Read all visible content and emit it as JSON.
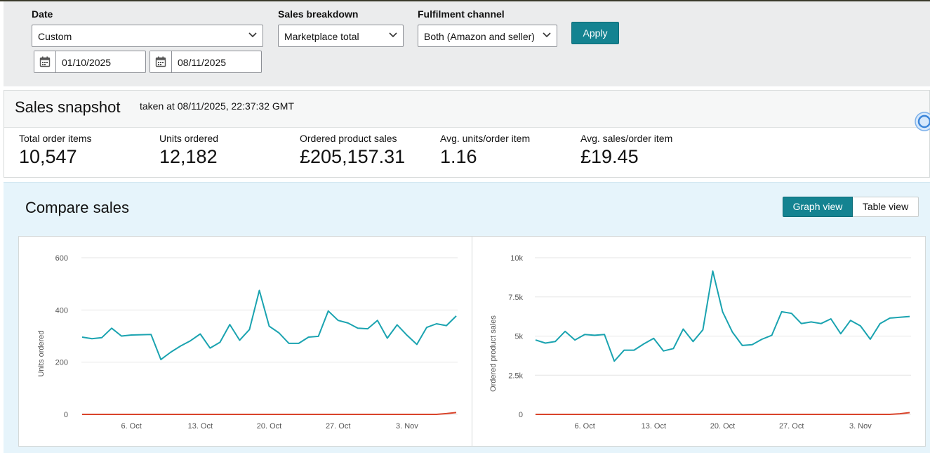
{
  "filters": {
    "date": {
      "label": "Date",
      "value": "Custom",
      "start": "01/10/2025",
      "end": "08/11/2025"
    },
    "sales_breakdown": {
      "label": "Sales breakdown",
      "value": "Marketplace total"
    },
    "fulfilment_channel": {
      "label": "Fulfilment channel",
      "value": "Both (Amazon and seller)"
    },
    "apply_label": "Apply"
  },
  "snapshot": {
    "title": "Sales snapshot",
    "taken": "taken at 08/11/2025, 22:37:32 GMT",
    "metrics": [
      {
        "label": "Total order items",
        "value": "10,547"
      },
      {
        "label": "Units ordered",
        "value": "12,182"
      },
      {
        "label": "Ordered product sales",
        "value": "£205,157.31"
      },
      {
        "label": "Avg. units/order item",
        "value": "1.16"
      },
      {
        "label": "Avg. sales/order item",
        "value": "£19.45"
      }
    ]
  },
  "compare": {
    "title": "Compare sales",
    "graph_view_label": "Graph view",
    "table_view_label": "Table view"
  },
  "colors": {
    "accent": "#148391",
    "series_main": "#1aa3b0",
    "series_compare": "#d9442b"
  },
  "chart_data": [
    {
      "type": "line",
      "ylabel": "Units ordered",
      "ylim": [
        0,
        600
      ],
      "yticks": [
        0,
        200,
        400,
        600
      ],
      "ytick_labels": [
        "0",
        "200",
        "400",
        "600"
      ],
      "x_start": "2025-10-01",
      "xticks": [
        "6. Oct",
        "13. Oct",
        "20. Oct",
        "27. Oct",
        "3. Nov"
      ],
      "grid": true,
      "series": [
        {
          "values": [
            296,
            290,
            294,
            330,
            300,
            304,
            305,
            306,
            210,
            238,
            262,
            282,
            308,
            254,
            276,
            344,
            284,
            325,
            475,
            338,
            312,
            272,
            272,
            296,
            299,
            396,
            360,
            350,
            330,
            328,
            360,
            292,
            343,
            303,
            268,
            333,
            347,
            340,
            377
          ]
        },
        {
          "values": [
            0,
            0,
            0,
            0,
            0,
            0,
            0,
            0,
            0,
            0,
            0,
            0,
            0,
            0,
            0,
            0,
            0,
            0,
            0,
            0,
            0,
            0,
            0,
            0,
            0,
            0,
            0,
            0,
            0,
            0,
            0,
            0,
            0,
            0,
            0,
            0,
            0,
            3,
            7
          ]
        }
      ]
    },
    {
      "type": "line",
      "ylabel": "Ordered product sales",
      "ylim": [
        0,
        10000
      ],
      "yticks": [
        0,
        2500,
        5000,
        7500,
        10000
      ],
      "ytick_labels": [
        "0",
        "2.5k",
        "5k",
        "7.5k",
        "10k"
      ],
      "x_start": "2025-10-01",
      "xticks": [
        "6. Oct",
        "13. Oct",
        "20. Oct",
        "27. Oct",
        "3. Nov"
      ],
      "grid": true,
      "series": [
        {
          "values": [
            4750,
            4550,
            4650,
            5300,
            4750,
            5100,
            5050,
            5100,
            3400,
            4100,
            4100,
            4500,
            4850,
            4050,
            4200,
            5450,
            4650,
            5400,
            9150,
            6550,
            5250,
            4400,
            4450,
            4800,
            5050,
            6550,
            6450,
            5800,
            5900,
            5800,
            6100,
            5150,
            6000,
            5650,
            4800,
            5800,
            6150,
            6200,
            6250
          ]
        },
        {
          "values": [
            0,
            0,
            0,
            0,
            0,
            0,
            0,
            0,
            0,
            0,
            0,
            0,
            0,
            0,
            0,
            0,
            0,
            0,
            0,
            0,
            0,
            0,
            0,
            0,
            0,
            0,
            0,
            0,
            0,
            0,
            0,
            0,
            0,
            0,
            0,
            0,
            0,
            40,
            110
          ]
        }
      ]
    }
  ]
}
